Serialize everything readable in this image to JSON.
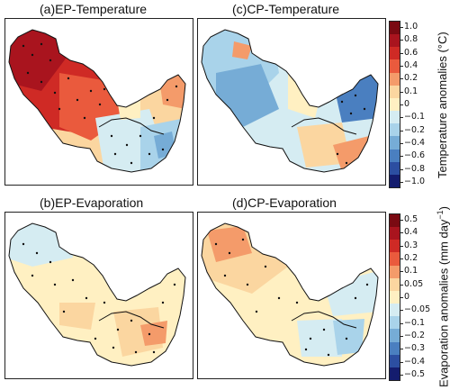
{
  "panels": {
    "a": {
      "title": "(a)EP-Temperature"
    },
    "b": {
      "title": "(b)EP-Evaporation"
    },
    "c": {
      "title": "(c)CP-Temperature"
    },
    "d": {
      "title": "(d)CP-Evaporation"
    }
  },
  "temperature_colorbar": {
    "label": "Temperature anomalies (°C)",
    "ticks": [
      "1.0",
      "0.8",
      "0.6",
      "0.4",
      "0.2",
      "0.1",
      "0",
      "−0.1",
      "−0.2",
      "−0.4",
      "−0.6",
      "−0.8",
      "−1.0"
    ],
    "colors": [
      "#7a0a12",
      "#a9141e",
      "#cf2a25",
      "#ea5a3d",
      "#f49b6a",
      "#fbd6a0",
      "#fff0c2",
      "#d5ecf2",
      "#a9d3ea",
      "#76acd6",
      "#4a7fc0",
      "#2c4ea1",
      "#141c6e"
    ]
  },
  "evaporation_colorbar": {
    "label_prefix": "Evaporation anomalies (mm day",
    "label_sup": "−1",
    "label_suffix": ")",
    "ticks": [
      "0.5",
      "0.4",
      "0.3",
      "0.2",
      "0.1",
      "0.05",
      "0",
      "−0.05",
      "−0.1",
      "−0.2",
      "−0.3",
      "−0.4",
      "−0.5"
    ],
    "colors": [
      "#7a0a12",
      "#a9141e",
      "#cf2a25",
      "#ea5a3d",
      "#f49b6a",
      "#fbd6a0",
      "#fff0c2",
      "#d5ecf2",
      "#a9d3ea",
      "#76acd6",
      "#4a7fc0",
      "#2c4ea1",
      "#141c6e"
    ]
  }
}
